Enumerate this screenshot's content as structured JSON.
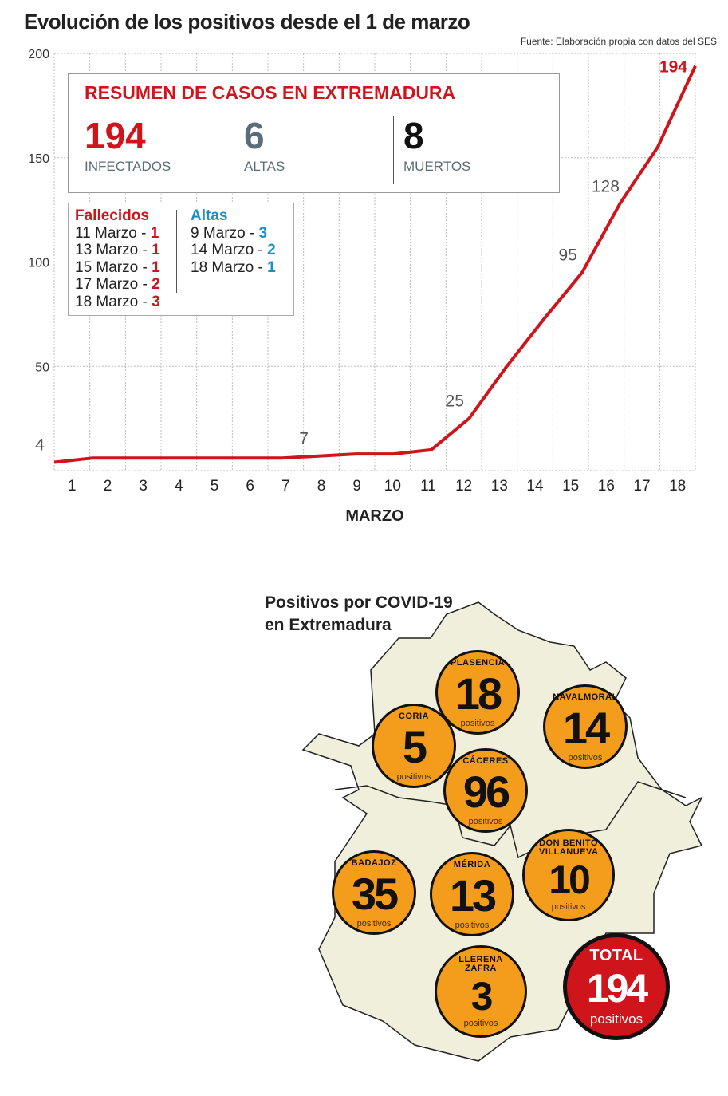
{
  "title": "Evolución de los positivos desde el 1 de marzo",
  "source": "Fuente: Elaboración propia con datos del SES",
  "summary": {
    "title": "RESUMEN DE CASOS EN EXTREMADURA",
    "stats": [
      {
        "value": "194",
        "label": "INFECTADOS",
        "color": "#d0141b"
      },
      {
        "value": "6",
        "label": "ALTAS",
        "color": "#5b6d78"
      },
      {
        "value": "8",
        "label": "MUERTOS",
        "color": "#111111"
      }
    ]
  },
  "legend": {
    "fallecidos_title": "Fallecidos",
    "altas_title": "Altas",
    "fallecidos": [
      {
        "date": "11 Marzo - ",
        "n": "1"
      },
      {
        "date": "13 Marzo - ",
        "n": "1"
      },
      {
        "date": "15 Marzo - ",
        "n": "1"
      },
      {
        "date": "17 Marzo - ",
        "n": "2"
      },
      {
        "date": "18 Marzo - ",
        "n": "3"
      }
    ],
    "altas": [
      {
        "date": "9 Marzo - ",
        "n": "3"
      },
      {
        "date": "14 Marzo - ",
        "n": "2"
      },
      {
        "date": "18 Marzo - ",
        "n": "1"
      }
    ]
  },
  "chart_data": {
    "type": "line",
    "title": "Evolución de los positivos desde el 1 de marzo",
    "xlabel": "MARZO",
    "ylabel": "",
    "categories": [
      "1",
      "2",
      "3",
      "4",
      "5",
      "6",
      "7",
      "8",
      "9",
      "10",
      "11",
      "12",
      "13",
      "14",
      "15",
      "16",
      "17",
      "18"
    ],
    "values": [
      4,
      6,
      6,
      6,
      6,
      6,
      6,
      7,
      8,
      8,
      10,
      25,
      50,
      73,
      95,
      128,
      155,
      194
    ],
    "data_labels": [
      {
        "index": 0,
        "text": "4"
      },
      {
        "index": 7,
        "text": "7"
      },
      {
        "index": 11,
        "text": "25"
      },
      {
        "index": 14,
        "text": "95"
      },
      {
        "index": 15,
        "text": "128"
      },
      {
        "index": 17,
        "text": "194"
      }
    ],
    "yticks": [
      50,
      100,
      150,
      200
    ],
    "ylim": [
      0,
      200
    ],
    "grid": true,
    "color": "#d0141b"
  },
  "map": {
    "title_line1": "Positivos por COVID-19",
    "title_line2": "en Extremadura",
    "unit": "positivos",
    "areas": [
      {
        "name": "PLASENCIA",
        "value": "18"
      },
      {
        "name": "NAVALMORAL",
        "value": "14"
      },
      {
        "name": "CORIA",
        "value": "5"
      },
      {
        "name": "CÁCERES",
        "value": "96"
      },
      {
        "name": "DON BENITO VILLANUEVA",
        "value": "10"
      },
      {
        "name": "BADAJOZ",
        "value": "35"
      },
      {
        "name": "MÉRIDA",
        "value": "13"
      },
      {
        "name": "LLERENA ZAFRA",
        "value": "3"
      }
    ],
    "total_label": "TOTAL",
    "total_value": "194"
  }
}
